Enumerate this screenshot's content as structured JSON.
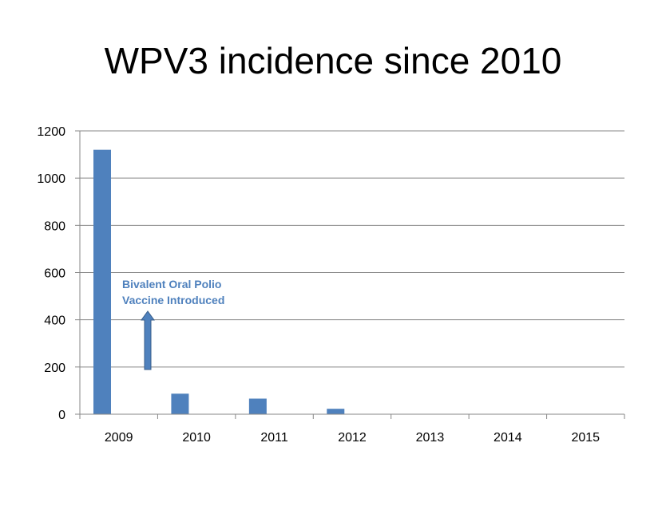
{
  "chart_data": {
    "type": "bar",
    "title": "WPV3 incidence since 2010",
    "categories": [
      "2009",
      "2010",
      "2011",
      "2012",
      "2013",
      "2014",
      "2015"
    ],
    "series": [
      {
        "values": [
          1120,
          87,
          66,
          23,
          0,
          0,
          0
        ]
      }
    ],
    "ylim": [
      0,
      1200
    ],
    "yticks": [
      0,
      200,
      400,
      600,
      800,
      1000,
      1200
    ],
    "grid": true,
    "legend": "none",
    "bar_color": "#4f81bd",
    "annotation": {
      "lines": [
        "Bivalent Oral Polio",
        "Vaccine Introduced"
      ],
      "color": "#4f81bd",
      "arrow": "up"
    }
  }
}
